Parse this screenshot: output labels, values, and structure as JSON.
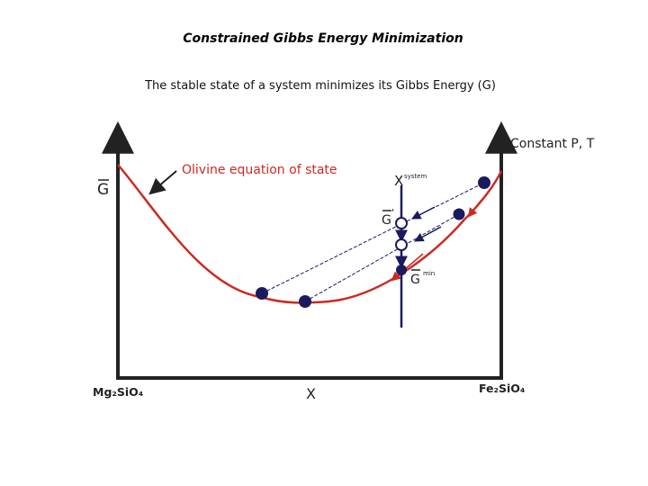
{
  "title": "Constrained Gibbs Energy Minimization",
  "subtitle": "The stable state of a system minimizes its Gibbs Energy (G)",
  "diagram": {
    "y_axis_label": "G",
    "conditions_label": "Constant P, T",
    "curve_label": "Olivine equation of state",
    "system_label": "X",
    "system_superscript": "system",
    "g_prime_label": "G",
    "g_prime_mark": "'",
    "g_min_label": "G",
    "g_min_superscript": "min",
    "x_axis_label": "X",
    "left_endmember": "Mg₂SiO₄",
    "right_endmember": "Fe₂SiO₄",
    "colors": {
      "curve": "#cc2a22",
      "point": "#1b1a5e",
      "axis": "#222222",
      "curve_label": "#cc2a22",
      "text": "#222222"
    }
  }
}
